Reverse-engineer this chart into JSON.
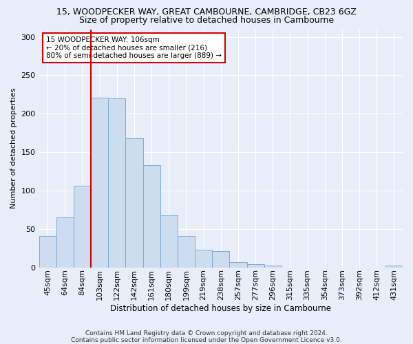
{
  "title1": "15, WOODPECKER WAY, GREAT CAMBOURNE, CAMBRIDGE, CB23 6GZ",
  "title2": "Size of property relative to detached houses in Cambourne",
  "xlabel": "Distribution of detached houses by size in Cambourne",
  "ylabel": "Number of detached properties",
  "categories": [
    "45sqm",
    "64sqm",
    "84sqm",
    "103sqm",
    "122sqm",
    "142sqm",
    "161sqm",
    "180sqm",
    "199sqm",
    "219sqm",
    "238sqm",
    "257sqm",
    "277sqm",
    "296sqm",
    "315sqm",
    "335sqm",
    "354sqm",
    "373sqm",
    "392sqm",
    "412sqm",
    "431sqm"
  ],
  "bar_heights": [
    41,
    65,
    106,
    221,
    220,
    168,
    133,
    68,
    41,
    23,
    21,
    7,
    4,
    2,
    0,
    0,
    0,
    0,
    0,
    0,
    2
  ],
  "bar_color": "#cddcee",
  "bar_edge_color": "#7aadd4",
  "vline_x_index": 3,
  "vline_color": "#cc0000",
  "annotation_text": "15 WOODPECKER WAY: 106sqm\n← 20% of detached houses are smaller (216)\n80% of semi-detached houses are larger (889) →",
  "annotation_box_color": "#ffffff",
  "annotation_box_edge": "#cc0000",
  "footer1": "Contains HM Land Registry data © Crown copyright and database right 2024.",
  "footer2": "Contains public sector information licensed under the Open Government Licence v3.0.",
  "ylim": [
    0,
    310
  ],
  "yticks": [
    0,
    50,
    100,
    150,
    200,
    250,
    300
  ],
  "background_color": "#e8eef8",
  "grid_color": "#ffffff",
  "title1_fontsize": 9,
  "title2_fontsize": 9,
  "ylabel_fontsize": 8,
  "xlabel_fontsize": 8.5,
  "tick_fontsize": 8,
  "annot_fontsize": 7.5,
  "footer_fontsize": 6.5
}
